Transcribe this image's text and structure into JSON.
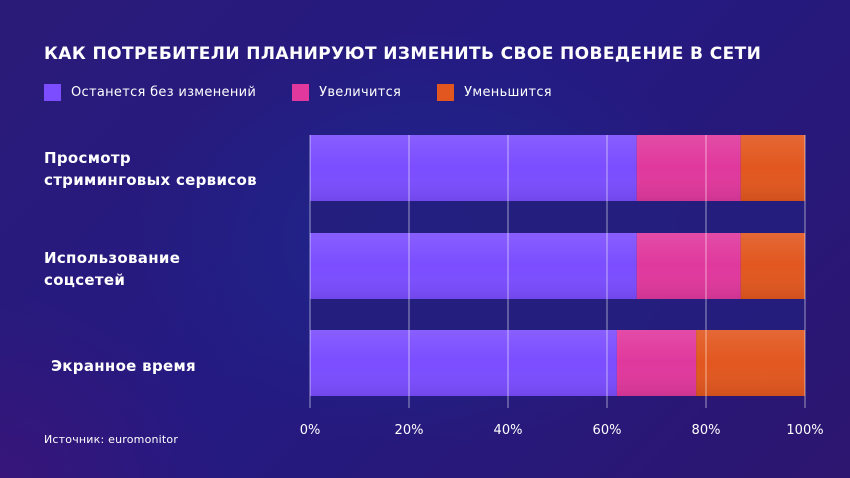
{
  "chart_data": {
    "type": "bar",
    "orientation": "horizontal",
    "stacked": true,
    "title": "КАК ПОТРЕБИТЕЛИ ПЛАНИРУЮТ ИЗМЕНИТЬ СВОЕ ПОВЕДЕНИЕ В СЕТИ",
    "categories": [
      "Просмотр\nстриминговых сервисов",
      "Использование\nсоцсетей",
      "Экранное время"
    ],
    "series": [
      {
        "name": "Останется без изменений",
        "color": "#7b4dff",
        "values": [
          66,
          66,
          62
        ]
      },
      {
        "name": "Увеличится",
        "color": "#e0389d",
        "values": [
          21,
          21,
          16
        ]
      },
      {
        "name": "Уменьшится",
        "color": "#e2571f",
        "values": [
          13,
          13,
          22
        ]
      }
    ],
    "xlim": [
      0,
      100
    ],
    "xticks": [
      "0%",
      "20%",
      "40%",
      "60%",
      "80%",
      "100%"
    ],
    "grid": true,
    "legend_position": "top-left",
    "source": "Источник: euromonitor"
  }
}
